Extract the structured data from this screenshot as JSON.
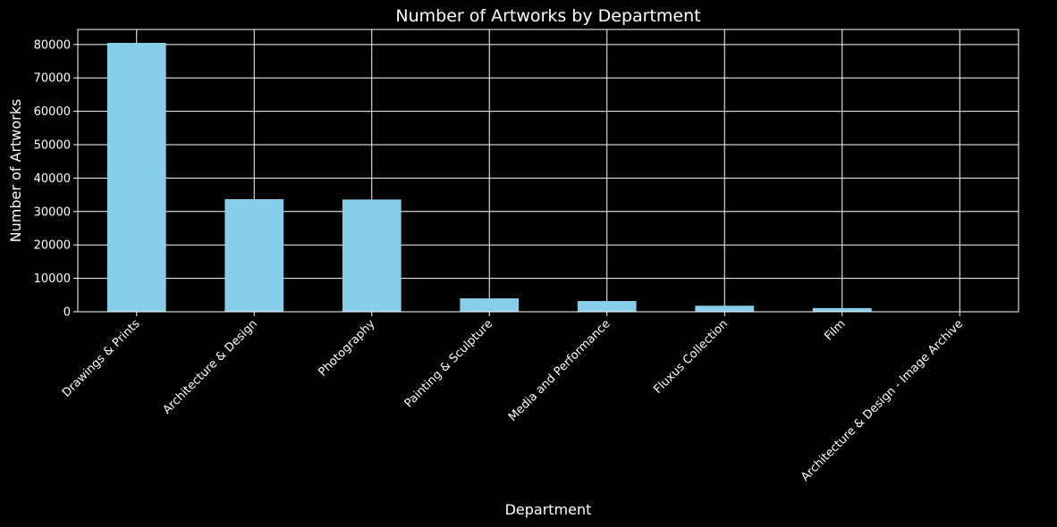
{
  "chart_data": {
    "type": "bar",
    "title": "Number of Artworks by Department",
    "xlabel": "Department",
    "ylabel": "Number of Artworks",
    "categories": [
      "Drawings & Prints",
      "Architecture & Design",
      "Photography",
      "Painting & Sculpture",
      "Media and Performance",
      "Fluxus Collection",
      "Film",
      "Architecture & Design - Image Archive"
    ],
    "values": [
      80500,
      33700,
      33600,
      4000,
      3200,
      1800,
      1100,
      100
    ],
    "ylim": [
      0,
      84500
    ],
    "yticks": [
      0,
      10000,
      20000,
      30000,
      40000,
      50000,
      60000,
      70000,
      80000
    ],
    "grid": true,
    "bar_color": "#87ceeb",
    "background_color": "#000000",
    "text_color": "#ffffff"
  }
}
